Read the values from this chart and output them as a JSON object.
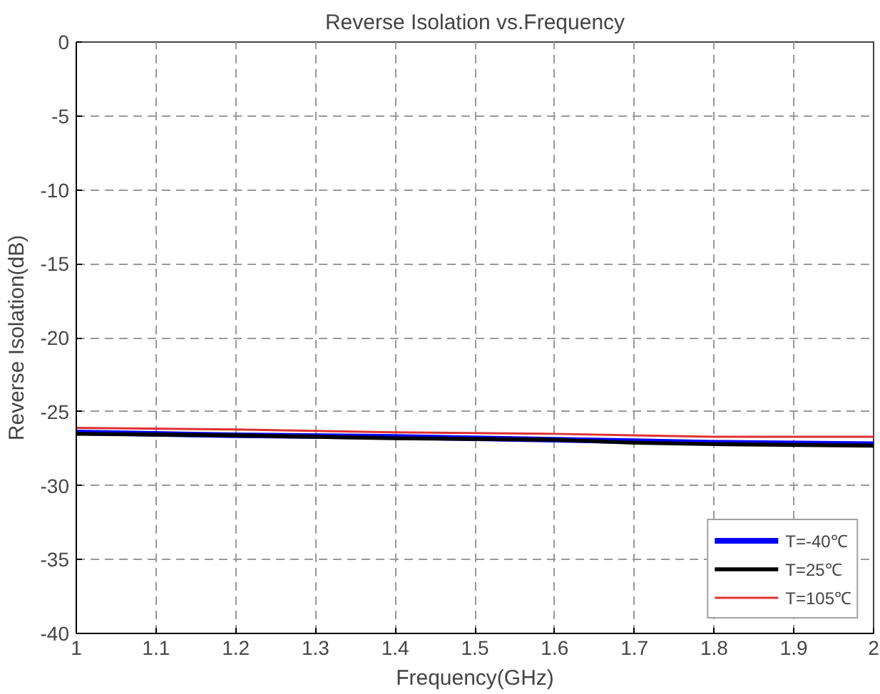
{
  "chart_data": {
    "type": "line",
    "title": "Reverse Isolation vs.Frequency",
    "xlabel": "Frequency(GHz)",
    "ylabel": "Reverse Isolation(dB)",
    "x": [
      1,
      1.2,
      1.4,
      1.6,
      1.7,
      1.8,
      2
    ],
    "series": [
      {
        "name": "T=-40℃",
        "color": "#0000ff",
        "values": [
          -26.4,
          -26.6,
          -26.7,
          -26.9,
          -27.0,
          -27.1,
          -27.2
        ]
      },
      {
        "name": "T=25℃",
        "color": "#000000",
        "values": [
          -26.5,
          -26.6,
          -26.8,
          -26.9,
          -27.1,
          -27.2,
          -27.3
        ]
      },
      {
        "name": "T=105℃",
        "color": "#e03030",
        "values": [
          -26.1,
          -26.2,
          -26.4,
          -26.5,
          -26.6,
          -26.7,
          -26.7
        ]
      }
    ],
    "xlim": [
      1,
      2
    ],
    "xticks": [
      1,
      1.1,
      1.2,
      1.3,
      1.4,
      1.5,
      1.6,
      1.7,
      1.8,
      1.9,
      2
    ],
    "ylim": [
      -40,
      0
    ],
    "yticks": [
      -40,
      -35,
      -30,
      -25,
      -20,
      -15,
      -10,
      -5,
      0
    ],
    "grid": true,
    "legend": "bottom right",
    "line_style": "solid"
  }
}
